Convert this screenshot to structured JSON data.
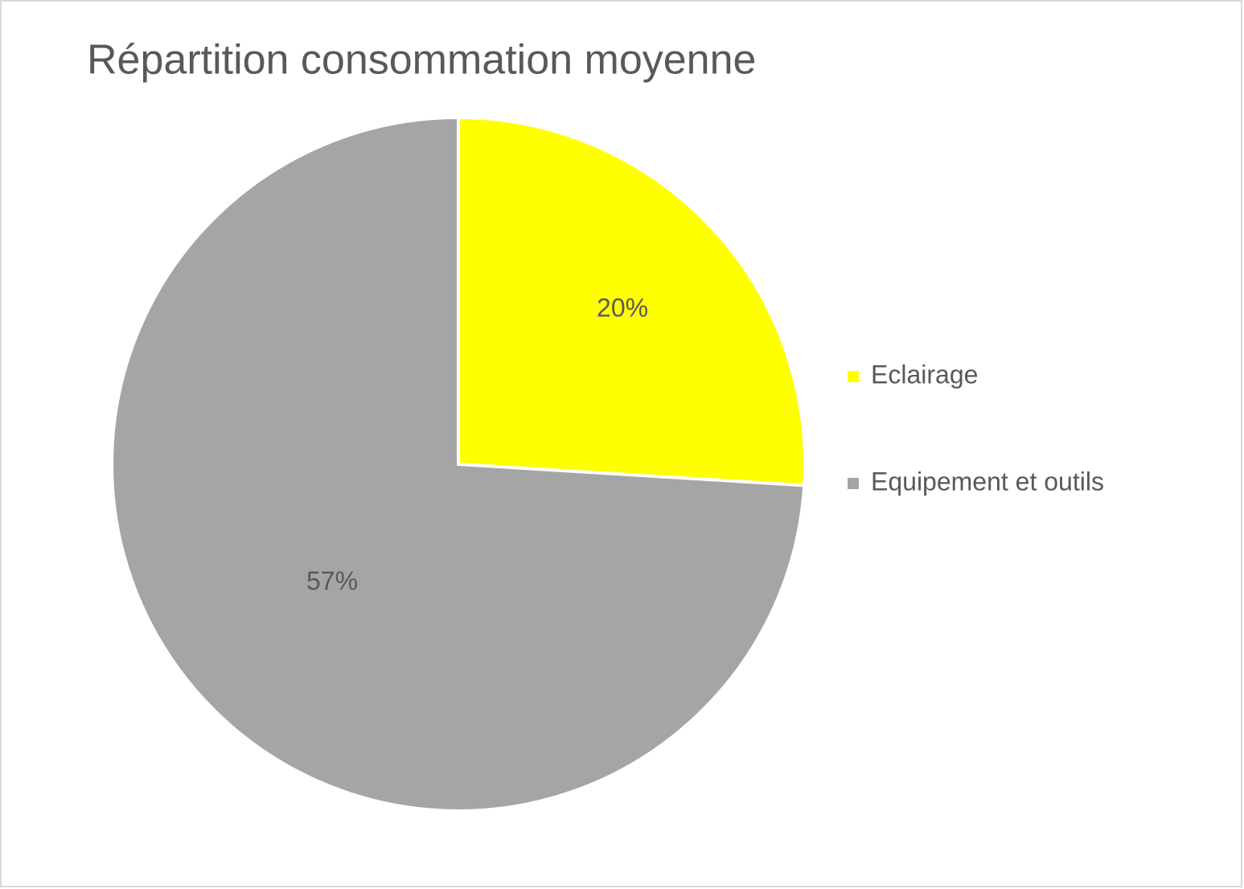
{
  "chart_data": {
    "type": "pie",
    "title": "Répartition consommation moyenne",
    "categories": [
      "Eclairage",
      "Equipement et outils"
    ],
    "values": [
      20,
      57
    ],
    "value_labels": [
      "20%",
      "57%"
    ],
    "colors": [
      "#ffff00",
      "#a5a5a5"
    ],
    "legend": "right"
  }
}
